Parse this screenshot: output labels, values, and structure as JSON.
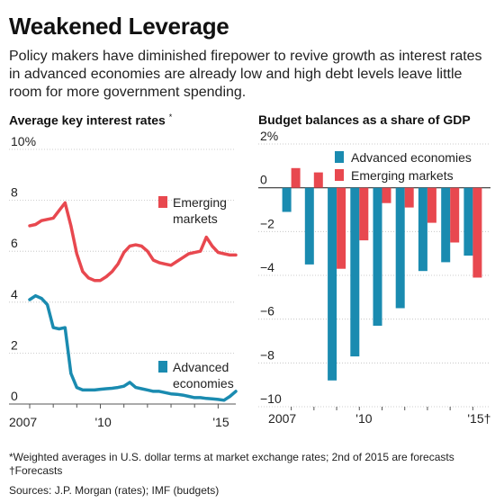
{
  "header": {
    "title": "Weakened Leverage",
    "subtitle": "Policy makers have diminished firepower to revive growth as interest rates in advanced economies are already low and high debt levels leave little room for more government spending."
  },
  "colors": {
    "emerging": "#e8484f",
    "advanced": "#1a8bb0",
    "grid": "#bdbdbd"
  },
  "footnotes": {
    "note1": "*Weighted averages in U.S. dollar terms at market exchange rates; 2nd of 2015 are forecasts",
    "note2": "†Forecasts",
    "sources": "Sources: J.P. Morgan (rates); IMF (budgets)"
  },
  "chart_data": [
    {
      "type": "line",
      "title": "Average key interest rates*",
      "ylim": [
        0,
        10
      ],
      "xlim": [
        2007.0,
        2015.75
      ],
      "y_ticks": [
        0,
        2,
        4,
        6,
        8,
        10
      ],
      "y_tick_labels": [
        "0",
        "2",
        "4",
        "6",
        "8",
        "10%"
      ],
      "x_ticks": [
        2007,
        2010,
        2015
      ],
      "x_tick_labels": [
        "2007",
        "'10",
        "'15"
      ],
      "series": [
        {
          "name": "Emerging markets",
          "legend_label": [
            "Emerging",
            "markets"
          ],
          "x": [
            2007.0,
            2007.25,
            2007.5,
            2007.75,
            2008.0,
            2008.25,
            2008.5,
            2008.75,
            2009.0,
            2009.25,
            2009.5,
            2009.75,
            2010.0,
            2010.25,
            2010.5,
            2010.75,
            2011.0,
            2011.25,
            2011.5,
            2011.75,
            2012.0,
            2012.25,
            2012.5,
            2012.75,
            2013.0,
            2013.25,
            2013.5,
            2013.75,
            2014.0,
            2014.25,
            2014.5,
            2014.75,
            2015.0,
            2015.25,
            2015.5,
            2015.75
          ],
          "values": [
            7.0,
            7.05,
            7.2,
            7.25,
            7.3,
            7.6,
            7.9,
            7.0,
            5.9,
            5.2,
            4.95,
            4.85,
            4.85,
            5.0,
            5.2,
            5.5,
            5.95,
            6.2,
            6.25,
            6.2,
            6.0,
            5.65,
            5.55,
            5.5,
            5.45,
            5.6,
            5.75,
            5.9,
            5.95,
            6.0,
            6.55,
            6.2,
            5.95,
            5.9,
            5.85,
            5.85
          ]
        },
        {
          "name": "Advanced economies",
          "legend_label": [
            "Advanced",
            "economies"
          ],
          "x": [
            2007.0,
            2007.25,
            2007.5,
            2007.75,
            2008.0,
            2008.25,
            2008.5,
            2008.75,
            2009.0,
            2009.25,
            2009.5,
            2009.75,
            2010.0,
            2010.25,
            2010.5,
            2010.75,
            2011.0,
            2011.25,
            2011.5,
            2011.75,
            2012.0,
            2012.25,
            2012.5,
            2012.75,
            2013.0,
            2013.25,
            2013.5,
            2013.75,
            2014.0,
            2014.25,
            2014.5,
            2014.75,
            2015.0,
            2015.25,
            2015.5,
            2015.75
          ],
          "values": [
            4.1,
            4.25,
            4.15,
            3.9,
            3.0,
            2.95,
            3.0,
            1.2,
            0.65,
            0.55,
            0.55,
            0.55,
            0.58,
            0.6,
            0.62,
            0.65,
            0.7,
            0.85,
            0.65,
            0.6,
            0.55,
            0.5,
            0.5,
            0.45,
            0.4,
            0.38,
            0.35,
            0.3,
            0.25,
            0.25,
            0.22,
            0.2,
            0.18,
            0.15,
            0.3,
            0.5
          ]
        }
      ]
    },
    {
      "type": "bar",
      "title": "Budget balances as a share of GDP",
      "ylim": [
        -10,
        2
      ],
      "y_ticks": [
        2,
        0,
        -2,
        -4,
        -6,
        -8,
        -10
      ],
      "y_tick_labels": [
        "2%",
        "0",
        "−2",
        "−4",
        "−6",
        "−8",
        "−10"
      ],
      "categories": [
        "2007",
        "2008",
        "2009",
        "2010",
        "2011",
        "2012",
        "2013",
        "2014",
        "2015"
      ],
      "x_tick_labels": [
        "2007",
        "",
        "",
        "'10",
        "",
        "",
        "",
        "",
        "'15†"
      ],
      "series": [
        {
          "name": "Advanced economies",
          "values": [
            -1.1,
            -3.5,
            -8.8,
            -7.7,
            -6.3,
            -5.5,
            -3.8,
            -3.4,
            -3.1
          ]
        },
        {
          "name": "Emerging markets",
          "values": [
            0.9,
            0.7,
            -3.7,
            -2.4,
            -0.7,
            -0.9,
            -1.6,
            -2.5,
            -4.1
          ]
        }
      ]
    }
  ]
}
